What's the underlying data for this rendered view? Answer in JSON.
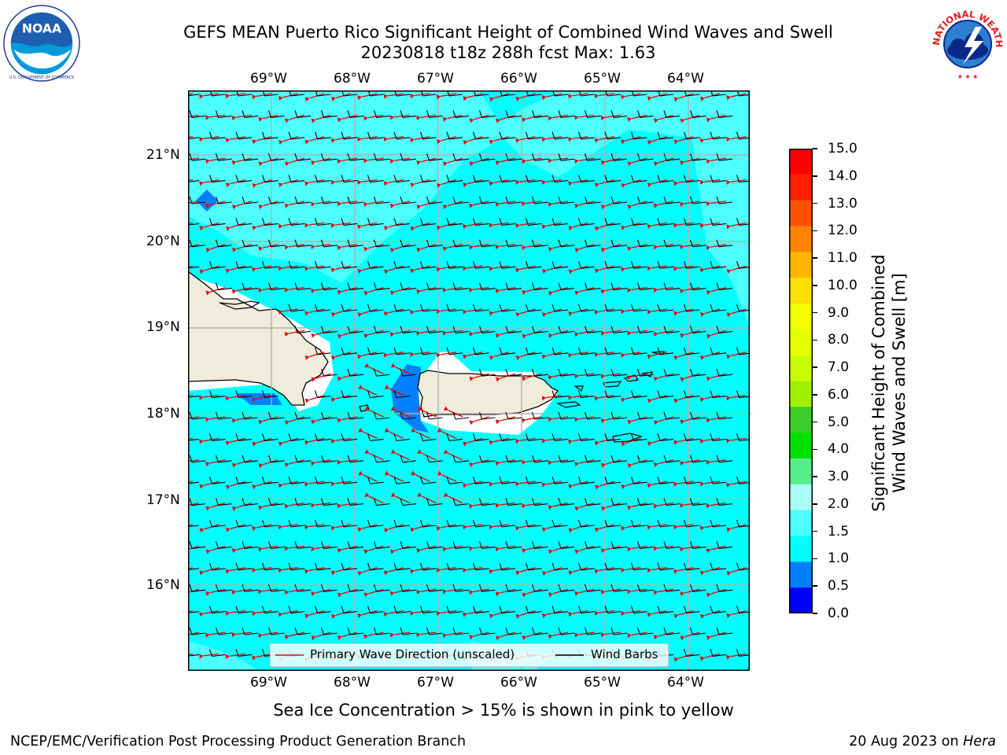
{
  "header": {
    "title_line1": "GEFS MEAN Puerto Rico Significant Height of Combined Wind Waves and Swell",
    "title_line2": "20230818 t18z 288h fcst   Max: 1.63"
  },
  "logos": {
    "noaa_text": "NOAA",
    "noaa_ring_text": "NATIONAL OCEANIC AND ATMOSPHERIC ADMINISTRATION",
    "noaa_bottom_text": "U.S. DEPARTMENT OF COMMERCE",
    "nws_text": "NATIONAL WEATHER SERVICE"
  },
  "map": {
    "lon_labels": [
      "69°W",
      "68°W",
      "67°W",
      "66°W",
      "65°W",
      "64°W"
    ],
    "lat_labels": [
      "21°N",
      "20°N",
      "19°N",
      "18°N",
      "17°N",
      "16°N"
    ],
    "legend": {
      "wave_direction": "Primary Wave Direction (unscaled)",
      "wind_barbs": "Wind Barbs"
    },
    "colors": {
      "ocean": "#00ffff",
      "ocean_light": "#4dfffe",
      "land": "#efecdc",
      "wave_arrow": "#ee0000",
      "barb": "#000000",
      "shallow": "#0080ff",
      "grid": "#b0b0b0"
    }
  },
  "colorbar": {
    "label_line1": "Significant Height of Combined",
    "label_line2": "Wind Waves and Swell [m]",
    "ticks": [
      "15.0",
      "14.0",
      "13.0",
      "12.0",
      "11.0",
      "10.0",
      "9.0",
      "8.0",
      "7.0",
      "6.0",
      "5.0",
      "4.0",
      "3.0",
      "2.0",
      "1.5",
      "1.0",
      "0.5",
      "0.0"
    ],
    "colors": [
      "#ff0000",
      "#ff2000",
      "#ff5200",
      "#ff8400",
      "#ffb400",
      "#ffe000",
      "#f6ff00",
      "#e6ff00",
      "#c8ff00",
      "#a0f000",
      "#3ccc2a",
      "#00e000",
      "#55ee88",
      "#a8fff6",
      "#4dfffe",
      "#00ffff",
      "#0080ff",
      "#0000ff"
    ]
  },
  "footer": {
    "sea_ice_note": "Sea Ice Concentration > 15% is shown in pink to yellow",
    "branch": "NCEP/EMC/Verification Post Processing Product Generation Branch",
    "date": "20 Aug 2023 on ",
    "machine": "Hera"
  }
}
